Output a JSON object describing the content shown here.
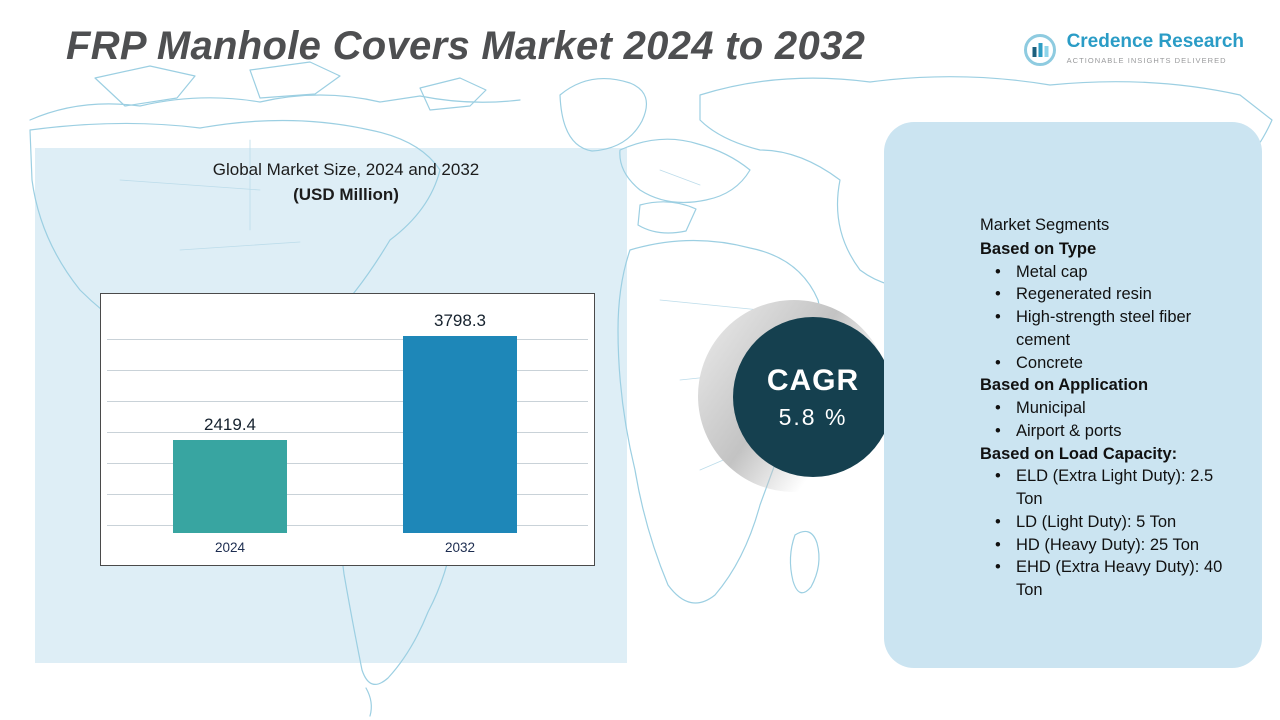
{
  "page": {
    "title": "FRP Manhole Covers Market 2024 to 2032"
  },
  "logo": {
    "name": "Credence Research",
    "tagline": "Actionable Insights Delivered"
  },
  "chart": {
    "heading_line1": "Global Market Size, 2024 and 2032",
    "heading_line2": "(USD Million)"
  },
  "chart_data": {
    "type": "bar",
    "title": "Global Market Size, 2024 and 2032",
    "subtitle": "(USD Million)",
    "categories": [
      "2024",
      "2032"
    ],
    "values": [
      2419.4,
      3798.3
    ],
    "bar_colors": [
      "#38a5a1",
      "#1e87b8"
    ],
    "ylabel": "USD Million",
    "ylim": [
      1200,
      4100
    ],
    "grid": true,
    "legend": false
  },
  "cagr": {
    "label": "CAGR",
    "value": "5.8 %"
  },
  "segments": {
    "title": "Market Segments",
    "sections": [
      {
        "heading": "Based on Type",
        "items": [
          "Metal cap",
          "Regenerated resin",
          "High-strength steel fiber cement",
          "Concrete"
        ]
      },
      {
        "heading": "Based on Application",
        "items": [
          "Municipal",
          "Airport & ports"
        ]
      },
      {
        "heading": "Based on Load Capacity:",
        "items": [
          "ELD (Extra Light Duty): 2.5 Ton",
          "LD (Light Duty): 5 Ton",
          "HD (Heavy Duty): 25 Ton",
          "EHD (Extra Heavy Duty): 40 Ton"
        ]
      }
    ]
  },
  "bullet_glyph": "•",
  "colors": {
    "accent_blue": "#1e87b8",
    "accent_teal": "#38a5a1",
    "cagr_circle": "#15404f",
    "panel_blue": "#cbe4f1",
    "map_stroke": "#9ccfe2"
  }
}
